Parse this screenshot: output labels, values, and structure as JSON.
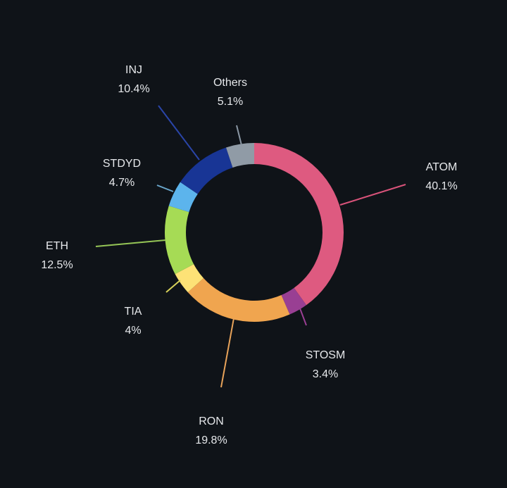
{
  "chart_data": {
    "type": "pie",
    "variant": "donut",
    "start": "top, clockwise",
    "slices": [
      {
        "name": "ATOM",
        "label": "40.1%",
        "value": 40.1,
        "color": "#de5a80",
        "tick_color": "#d9537a"
      },
      {
        "name": "STOSM",
        "label": "3.4%",
        "value": 3.4,
        "color": "#993f93",
        "tick_color": "#9b3f94"
      },
      {
        "name": "RON",
        "label": "19.8%",
        "value": 19.8,
        "color": "#f0a54f",
        "tick_color": "#e8a35a"
      },
      {
        "name": "TIA",
        "label": "4%",
        "value": 4.0,
        "color": "#fde276",
        "tick_color": "#d8d25a"
      },
      {
        "name": "ETH",
        "label": "12.5%",
        "value": 12.5,
        "color": "#a6db55",
        "tick_color": "#95c556"
      },
      {
        "name": "STDYD",
        "label": "4.7%",
        "value": 4.7,
        "color": "#5cb4ec",
        "tick_color": "#6aa7cc"
      },
      {
        "name": "INJ",
        "label": "10.4%",
        "value": 10.4,
        "color": "#183595",
        "tick_color": "#2a45a8"
      },
      {
        "name": "Others",
        "label": "5.1%",
        "value": 5.1,
        "color": "#909ba6",
        "tick_color": "#8a97a4"
      }
    ]
  }
}
